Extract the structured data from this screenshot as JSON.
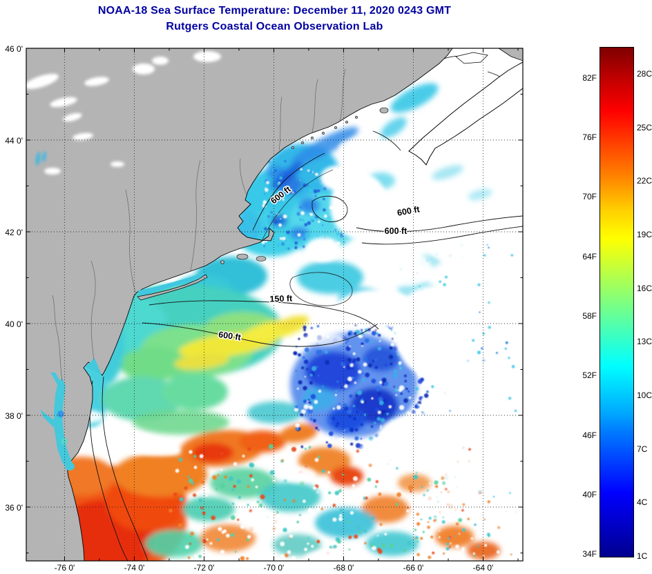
{
  "header": {
    "title": "NOAA-18 Sea Surface Temperature:  December 11, 2020 0243 GMT",
    "subtitle": "Rutgers Coastal Ocean Observation Lab"
  },
  "axes": {
    "y_ticks": [
      "46 0'",
      "44 0'",
      "42 0'",
      "40 0'",
      "38 0'",
      "36 0'"
    ],
    "x_ticks": [
      "-76 0'",
      "-74 0'",
      "-72 0'",
      "-70 0'",
      "-68 0'",
      "-66 0'",
      "-64 0'"
    ]
  },
  "map": {
    "contour_labels": [
      "600 ft",
      "600 ft",
      "600 ft",
      "150 ft",
      "600 ft"
    ]
  },
  "colorbar": {
    "f_labels": [
      "82F",
      "76F",
      "70F",
      "64F",
      "58F",
      "52F",
      "46F",
      "40F",
      "34F"
    ],
    "c_labels": [
      "28C",
      "25C",
      "22C",
      "19C",
      "16C",
      "13C",
      "10C",
      "7C",
      "4C",
      "1C"
    ]
  },
  "colors": {
    "title_blue": "#0000a0",
    "land_gray": "#b4b4b4",
    "cloud_white": "#ffffff",
    "colormap": "jet"
  },
  "chart_data": {
    "type": "heatmap",
    "title": "NOAA-18 Sea Surface Temperature:  December 11, 2020 0243 GMT",
    "subtitle": "Rutgers Coastal Ocean Observation Lab",
    "x_ticks": [
      "-76 0'",
      "-74 0'",
      "-72 0'",
      "-70 0'",
      "-68 0'",
      "-66 0'",
      "-64 0'"
    ],
    "y_ticks": [
      "46 0'",
      "44 0'",
      "42 0'",
      "40 0'",
      "38 0'",
      "36 0'"
    ],
    "colorbar": {
      "colormap": "jet",
      "fahrenheit_ticks": [
        34,
        40,
        46,
        52,
        58,
        64,
        70,
        76,
        82
      ],
      "celsius_ticks": [
        1,
        4,
        7,
        10,
        13,
        16,
        19,
        22,
        25,
        28
      ]
    },
    "bathymetry_contour_labels": [
      "600 ft",
      "600 ft",
      "600 ft",
      "150 ft",
      "600 ft"
    ],
    "legend_position": "right"
  }
}
